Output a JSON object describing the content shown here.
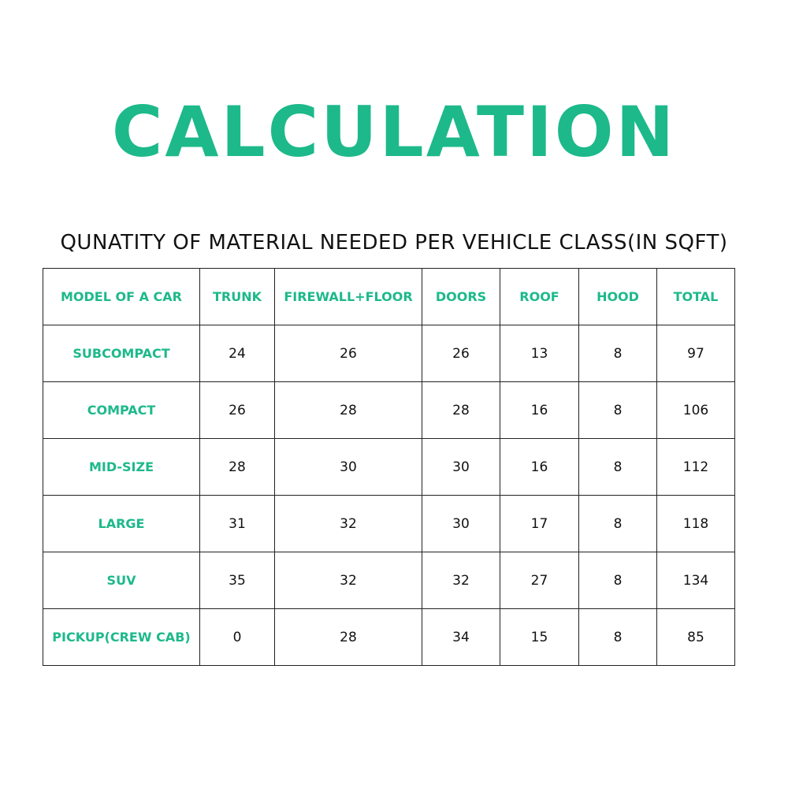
{
  "title": "CALCULATION",
  "subtitle": "QUNATITY OF MATERIAL NEEDED PER VEHICLE CLASS(IN SQFT)",
  "accent_color": "#1db98a",
  "table": {
    "headers": [
      "MODEL OF A CAR",
      "TRUNK",
      "FIREWALL+FLOOR",
      "DOORS",
      "ROOF",
      "HOOD",
      "TOTAL"
    ],
    "rows": [
      [
        "SUBCOMPACT",
        "24",
        "26",
        "26",
        "13",
        "8",
        "97"
      ],
      [
        "COMPACT",
        "26",
        "28",
        "28",
        "16",
        "8",
        "106"
      ],
      [
        "MID-SIZE",
        "28",
        "30",
        "30",
        "16",
        "8",
        "112"
      ],
      [
        "LARGE",
        "31",
        "32",
        "30",
        "17",
        "8",
        "118"
      ],
      [
        "SUV",
        "35",
        "32",
        "32",
        "27",
        "8",
        "134"
      ],
      [
        "PICKUP(CREW CAB)",
        "0",
        "28",
        "34",
        "15",
        "8",
        "85"
      ]
    ]
  }
}
